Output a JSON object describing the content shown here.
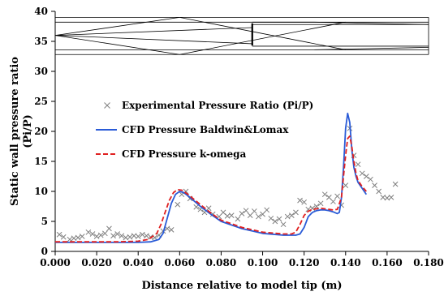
{
  "chart_data": {
    "type": "line",
    "title": "",
    "xlabel": "Distance relative to model tip (m)",
    "ylabel": "Static wall pressure ratio (Pi/P)",
    "xlim": [
      0,
      0.18
    ],
    "ylim": [
      0,
      40
    ],
    "xticks": [
      "0.000",
      "0.020",
      "0.040",
      "0.060",
      "0.080",
      "0.100",
      "0.120",
      "0.140",
      "0.160",
      "0.180"
    ],
    "yticks": [
      "0",
      "5",
      "10",
      "15",
      "20",
      "25",
      "30",
      "35",
      "40"
    ],
    "grid": false,
    "legend_position": "center-left",
    "series": [
      {
        "name": "Experimental Pressure Ratio (Pi/P)",
        "type": "scatter",
        "marker": "x",
        "color": "#7f7f7f",
        "x": [
          0.002,
          0.004,
          0.007,
          0.009,
          0.011,
          0.013,
          0.016,
          0.018,
          0.02,
          0.022,
          0.024,
          0.026,
          0.028,
          0.03,
          0.032,
          0.034,
          0.036,
          0.038,
          0.04,
          0.042,
          0.044,
          0.046,
          0.048,
          0.05,
          0.052,
          0.054,
          0.056,
          0.059,
          0.061,
          0.063,
          0.065,
          0.068,
          0.07,
          0.072,
          0.074,
          0.076,
          0.079,
          0.081,
          0.083,
          0.085,
          0.088,
          0.09,
          0.092,
          0.094,
          0.096,
          0.098,
          0.1,
          0.102,
          0.104,
          0.106,
          0.108,
          0.11,
          0.112,
          0.114,
          0.116,
          0.118,
          0.12,
          0.122,
          0.124,
          0.126,
          0.128,
          0.13,
          0.132,
          0.134,
          0.136,
          0.138,
          0.14,
          0.142,
          0.144,
          0.146,
          0.148,
          0.15,
          0.152,
          0.154,
          0.156,
          0.158,
          0.16,
          0.162,
          0.164
        ],
        "y": [
          2.8,
          2.4,
          2.0,
          2.2,
          2.3,
          2.5,
          3.2,
          2.9,
          2.5,
          2.7,
          3.0,
          3.8,
          2.6,
          2.9,
          2.6,
          2.3,
          2.4,
          2.6,
          2.5,
          2.8,
          2.6,
          2.4,
          2.3,
          2.7,
          3.4,
          3.8,
          3.6,
          7.8,
          9.5,
          10.0,
          8.8,
          7.4,
          7.0,
          6.5,
          7.2,
          6.2,
          5.8,
          6.5,
          5.9,
          6.0,
          5.4,
          6.3,
          6.8,
          6.0,
          6.7,
          5.8,
          6.2,
          6.9,
          5.5,
          5.0,
          5.4,
          4.5,
          5.8,
          6.0,
          6.5,
          8.5,
          8.2,
          7.0,
          7.2,
          7.5,
          8.0,
          9.5,
          9.0,
          8.3,
          9.2,
          7.7,
          11.0,
          20.5,
          16.0,
          14.5,
          13.0,
          12.5,
          12.0,
          11.0,
          10.0,
          9.0,
          8.9,
          9.0,
          11.2
        ]
      },
      {
        "name": "CFD Pressure Baldwin&Lomax",
        "type": "line",
        "dash": "solid",
        "color": "#2a5bd7",
        "x": [
          0.0,
          0.01,
          0.02,
          0.03,
          0.04,
          0.046,
          0.05,
          0.052,
          0.054,
          0.056,
          0.058,
          0.06,
          0.062,
          0.065,
          0.07,
          0.075,
          0.08,
          0.09,
          0.1,
          0.11,
          0.116,
          0.118,
          0.12,
          0.122,
          0.124,
          0.126,
          0.128,
          0.13,
          0.132,
          0.134,
          0.136,
          0.137,
          0.138,
          0.139,
          0.14,
          0.141,
          0.142,
          0.143,
          0.144,
          0.145,
          0.146,
          0.148,
          0.15
        ],
        "y": [
          1.5,
          1.5,
          1.5,
          1.5,
          1.5,
          1.6,
          2.0,
          3.0,
          5.5,
          8.0,
          9.5,
          10.0,
          9.8,
          9.0,
          7.5,
          6.2,
          5.0,
          3.8,
          3.0,
          2.7,
          2.7,
          2.9,
          4.0,
          5.8,
          6.5,
          6.8,
          6.9,
          6.9,
          6.8,
          6.6,
          6.3,
          6.5,
          9.0,
          14.0,
          20.5,
          23.0,
          21.5,
          17.0,
          14.0,
          12.5,
          11.5,
          10.5,
          9.5
        ]
      },
      {
        "name": "CFD Pressure k-omega",
        "type": "line",
        "dash": "dashed",
        "color": "#e02020",
        "x": [
          0.0,
          0.01,
          0.02,
          0.03,
          0.04,
          0.045,
          0.049,
          0.051,
          0.053,
          0.055,
          0.057,
          0.059,
          0.061,
          0.064,
          0.07,
          0.075,
          0.08,
          0.09,
          0.1,
          0.11,
          0.114,
          0.116,
          0.118,
          0.12,
          0.122,
          0.124,
          0.126,
          0.128,
          0.13,
          0.132,
          0.134,
          0.136,
          0.138,
          0.139,
          0.14,
          0.141,
          0.142,
          0.143,
          0.144,
          0.145,
          0.146,
          0.148,
          0.15
        ],
        "y": [
          1.6,
          1.6,
          1.6,
          1.6,
          1.7,
          2.0,
          3.0,
          4.5,
          6.5,
          8.5,
          9.8,
          10.3,
          10.2,
          9.5,
          7.8,
          6.4,
          5.2,
          4.0,
          3.2,
          2.9,
          2.9,
          3.2,
          4.5,
          6.0,
          6.7,
          7.0,
          7.1,
          7.2,
          7.1,
          7.0,
          6.9,
          7.0,
          9.0,
          12.5,
          16.0,
          18.8,
          19.2,
          17.5,
          15.0,
          13.0,
          11.8,
          10.8,
          10.0
        ]
      }
    ],
    "inset": {
      "description_free": true,
      "y_range": [
        33,
        39
      ],
      "color": "#000000"
    }
  }
}
